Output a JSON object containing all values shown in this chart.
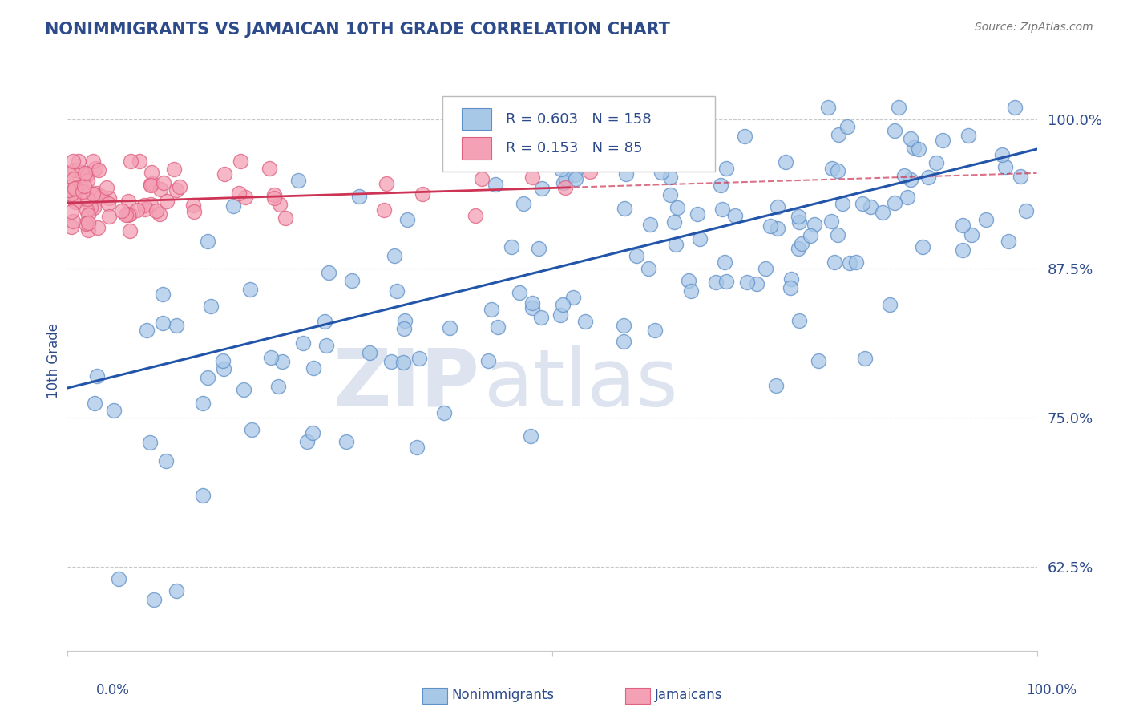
{
  "title": "NONIMMIGRANTS VS JAMAICAN 10TH GRADE CORRELATION CHART",
  "source": "Source: ZipAtlas.com",
  "ylabel": "10th Grade",
  "ytick_labels": [
    "100.0%",
    "87.5%",
    "75.0%",
    "62.5%"
  ],
  "ytick_values": [
    1.0,
    0.875,
    0.75,
    0.625
  ],
  "xmin": 0.0,
  "xmax": 1.0,
  "ymin": 0.555,
  "ymax": 1.04,
  "blue_R": 0.603,
  "blue_N": 158,
  "pink_R": 0.153,
  "pink_N": 85,
  "blue_color": "#a8c8e8",
  "pink_color": "#f4a0b5",
  "blue_edge_color": "#6090c8",
  "pink_edge_color": "#e06080",
  "blue_line_color": "#2255aa",
  "pink_line_color": "#cc3355",
  "legend_blue_label": "Nonimmigrants",
  "legend_pink_label": "Jamaicans",
  "title_color": "#2d4a8a",
  "source_color": "#777777",
  "axis_label_color": "#2d4a8a",
  "tick_color": "#2d4a8a",
  "grid_color": "#c8c8c8",
  "watermark_zip_color": "#dde4ef",
  "watermark_atlas_color": "#dde4ef",
  "background_color": "#ffffff"
}
